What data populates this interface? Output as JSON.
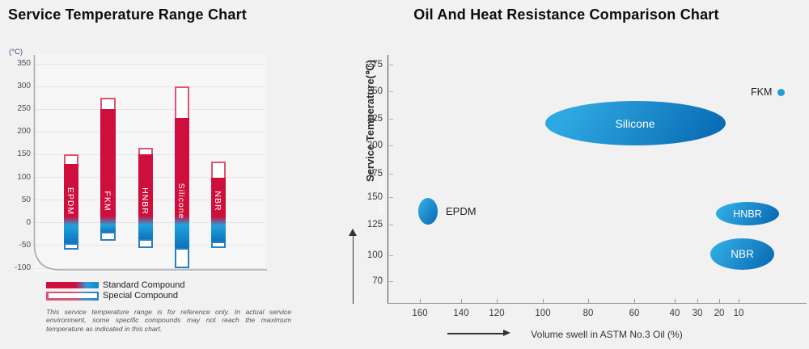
{
  "left_chart": {
    "title": "Service Temperature Range Chart",
    "unit_label": "(°C)",
    "legend": [
      {
        "label": "Standard Compound"
      },
      {
        "label": "Special Compound"
      }
    ],
    "disclaimer": "This service temperature range is for reference only. In actual service environment, some specific compounds may not reach the maximum temperature as indicated in this chart."
  },
  "right_chart": {
    "title": "Oil And Heat Resistance Comparison Chart",
    "y_axis_label": "Service Temperature(℃)",
    "x_axis_label": "Volume swell in ASTM No.3 Oil (%)",
    "ghost_label": "Silicone"
  },
  "colors": {
    "standard_red": "#ce0f3d",
    "standard_blue_light": "#21a2dd",
    "standard_blue_dark": "#0a6eb8",
    "outline_red": "#dd5470",
    "outline_blue": "#2b7fc0",
    "bubble_blue_light": "#2ea8e1",
    "bubble_blue_dark": "#0a6cb4",
    "fkm_dot_blue": "#1f9cd9"
  },
  "chart_data": [
    {
      "type": "range_bar",
      "title": "Service Temperature Range Chart",
      "unit": "°C",
      "ylim": [
        -100,
        350
      ],
      "y_ticks": [
        350,
        300,
        250,
        200,
        150,
        100,
        50,
        0,
        -50,
        -100
      ],
      "grid": true,
      "legend": [
        "Standard Compound",
        "Special Compound"
      ],
      "bars": [
        {
          "name": "EPDM",
          "standard_range": [
            -50,
            130
          ],
          "special_range": [
            -60,
            150
          ]
        },
        {
          "name": "FKM",
          "standard_range": [
            -25,
            250
          ],
          "special_range": [
            -40,
            275
          ]
        },
        {
          "name": "HNBR",
          "standard_range": [
            -40,
            150
          ],
          "special_range": [
            -55,
            165
          ]
        },
        {
          "name": "Silicone",
          "standard_range": [
            -60,
            230
          ],
          "special_range": [
            -100,
            300
          ]
        },
        {
          "name": "NBR",
          "standard_range": [
            -45,
            100
          ],
          "special_range": [
            -55,
            135
          ]
        }
      ]
    },
    {
      "type": "bubble",
      "title": "Oil And Heat Resistance Comparison Chart",
      "xlabel": "Volume swell in ASTM No.3 Oil (%)",
      "ylabel": "Service Temperature(℃)",
      "x_axis_reversed": true,
      "x_ticks": [
        160,
        140,
        120,
        100,
        80,
        60,
        40,
        30,
        20,
        10
      ],
      "y_ticks": [
        275,
        250,
        225,
        200,
        175,
        150,
        125,
        100,
        70
      ],
      "bubbles": [
        {
          "name": "FKM",
          "swell_pct": [
            0,
            5
          ],
          "temp_c": [
            245,
            255
          ],
          "label_inside": false
        },
        {
          "name": "Silicone",
          "swell_pct": [
            12,
            100
          ],
          "temp_c": [
            200,
            240
          ],
          "label_inside": true
        },
        {
          "name": "EPDM",
          "swell_pct": [
            155,
            165
          ],
          "temp_c": [
            128,
            150
          ],
          "label_inside": false
        },
        {
          "name": "HNBR",
          "swell_pct": [
            5,
            22
          ],
          "temp_c": [
            127,
            148
          ],
          "label_inside": true
        },
        {
          "name": "NBR",
          "swell_pct": [
            8,
            25
          ],
          "temp_c": [
            85,
            115
          ],
          "label_inside": true
        }
      ]
    }
  ]
}
